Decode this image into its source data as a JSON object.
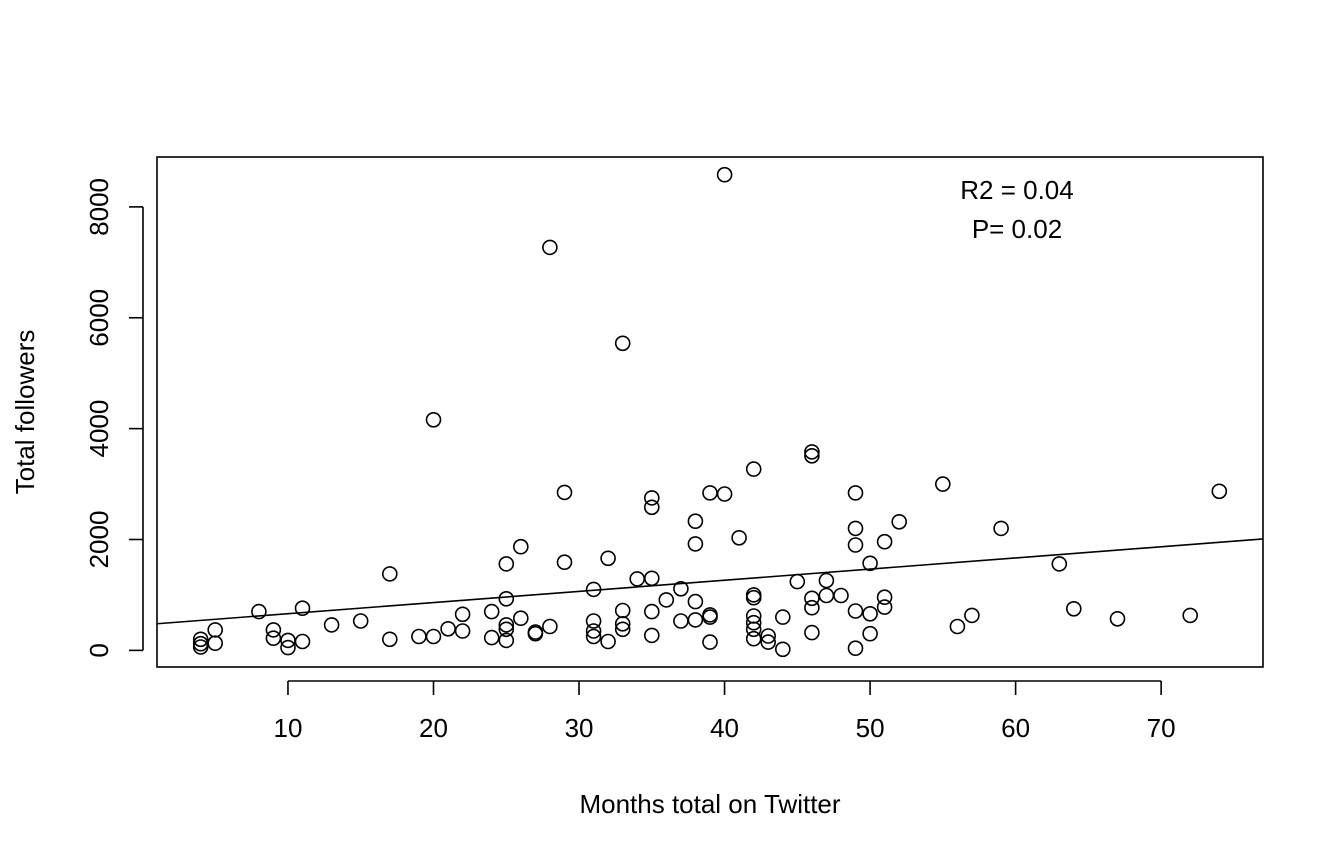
{
  "chart_data": {
    "type": "scatter",
    "xlabel": "Months total on Twitter",
    "ylabel": "Total followers",
    "xlim": [
      1,
      77
    ],
    "ylim": [
      -300,
      8900
    ],
    "xticks": [
      10,
      20,
      30,
      40,
      50,
      60,
      70
    ],
    "yticks": [
      0,
      2000,
      4000,
      6000,
      8000
    ],
    "annotations": [
      "R2 = 0.04",
      "P= 0.02"
    ],
    "fit_line": {
      "x": [
        1,
        77
      ],
      "y": [
        480,
        2010
      ]
    },
    "points": [
      [
        4,
        60
      ],
      [
        4,
        120
      ],
      [
        4,
        200
      ],
      [
        5,
        130
      ],
      [
        5,
        370
      ],
      [
        8,
        700
      ],
      [
        9,
        220
      ],
      [
        9,
        370
      ],
      [
        10,
        50
      ],
      [
        10,
        180
      ],
      [
        11,
        160
      ],
      [
        11,
        760
      ],
      [
        13,
        460
      ],
      [
        15,
        530
      ],
      [
        17,
        200
      ],
      [
        17,
        1380
      ],
      [
        19,
        250
      ],
      [
        20,
        250
      ],
      [
        20,
        4160
      ],
      [
        21,
        390
      ],
      [
        22,
        350
      ],
      [
        22,
        650
      ],
      [
        24,
        230
      ],
      [
        24,
        700
      ],
      [
        25,
        180
      ],
      [
        25,
        380
      ],
      [
        25,
        460
      ],
      [
        25,
        930
      ],
      [
        25,
        1560
      ],
      [
        26,
        580
      ],
      [
        26,
        1870
      ],
      [
        27,
        300
      ],
      [
        27,
        330
      ],
      [
        28,
        430
      ],
      [
        28,
        7270
      ],
      [
        29,
        1590
      ],
      [
        29,
        2850
      ],
      [
        31,
        250
      ],
      [
        31,
        350
      ],
      [
        31,
        530
      ],
      [
        31,
        1100
      ],
      [
        32,
        160
      ],
      [
        32,
        1660
      ],
      [
        33,
        380
      ],
      [
        33,
        480
      ],
      [
        33,
        720
      ],
      [
        33,
        5540
      ],
      [
        34,
        1290
      ],
      [
        35,
        270
      ],
      [
        35,
        700
      ],
      [
        35,
        1300
      ],
      [
        35,
        2580
      ],
      [
        35,
        2750
      ],
      [
        36,
        910
      ],
      [
        37,
        530
      ],
      [
        37,
        1110
      ],
      [
        38,
        550
      ],
      [
        38,
        880
      ],
      [
        38,
        1920
      ],
      [
        38,
        2330
      ],
      [
        39,
        150
      ],
      [
        39,
        600
      ],
      [
        39,
        640
      ],
      [
        39,
        2840
      ],
      [
        40,
        2820
      ],
      [
        40,
        8580
      ],
      [
        41,
        2030
      ],
      [
        42,
        210
      ],
      [
        42,
        380
      ],
      [
        42,
        500
      ],
      [
        42,
        620
      ],
      [
        42,
        950
      ],
      [
        42,
        1000
      ],
      [
        42,
        3270
      ],
      [
        43,
        150
      ],
      [
        43,
        260
      ],
      [
        44,
        20
      ],
      [
        44,
        600
      ],
      [
        45,
        1240
      ],
      [
        46,
        320
      ],
      [
        46,
        770
      ],
      [
        46,
        940
      ],
      [
        46,
        3510
      ],
      [
        46,
        3580
      ],
      [
        47,
        990
      ],
      [
        47,
        1260
      ],
      [
        48,
        990
      ],
      [
        49,
        40
      ],
      [
        49,
        710
      ],
      [
        49,
        1900
      ],
      [
        49,
        2200
      ],
      [
        49,
        2840
      ],
      [
        50,
        300
      ],
      [
        50,
        660
      ],
      [
        50,
        1570
      ],
      [
        51,
        780
      ],
      [
        51,
        960
      ],
      [
        51,
        1960
      ],
      [
        52,
        2320
      ],
      [
        55,
        3000
      ],
      [
        56,
        430
      ],
      [
        57,
        630
      ],
      [
        59,
        2200
      ],
      [
        63,
        1560
      ],
      [
        64,
        750
      ],
      [
        67,
        570
      ],
      [
        72,
        630
      ],
      [
        74,
        2870
      ]
    ]
  }
}
